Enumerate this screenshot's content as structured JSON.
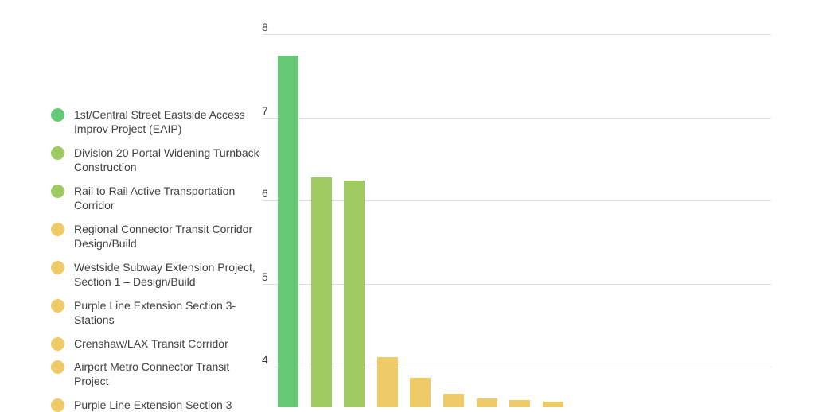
{
  "chart_data": {
    "type": "bar",
    "title": "",
    "xlabel": "",
    "ylabel": "",
    "ylim": [
      3.5,
      8
    ],
    "yticks": [
      4,
      5,
      6,
      7,
      8
    ],
    "grid": true,
    "legend_position": "left",
    "categories": [
      "1st/Central Street Eastside Access Improv Project (EAIP)",
      "Division 20 Portal Widening Turnback Construction",
      "Rail to Rail Active Transportation Corridor",
      "Regional Connector Transit Corridor Design/Build",
      "Westside Subway Extension Project, Section 1 – Design/Build",
      "Purple Line Extension Section 3-Stations",
      "Crenshaw/LAX Transit Corridor",
      "Airport Metro Connector Transit Project",
      "Purple Line Extension Section 3"
    ],
    "values": [
      7.74,
      6.28,
      6.24,
      4.12,
      3.87,
      3.68,
      3.62,
      3.6,
      3.58
    ],
    "colors": [
      "#66c975",
      "#9fca62",
      "#9fca62",
      "#eecb67",
      "#eecb67",
      "#eecb67",
      "#eecb67",
      "#eecb67",
      "#eecb67"
    ]
  },
  "legend": {
    "items": [
      {
        "label": "1st/Central Street Eastside Access Improv Project (EAIP)",
        "color": "#66c975"
      },
      {
        "label": "Division 20 Portal Widening Turnback Construction",
        "color": "#9fca62"
      },
      {
        "label": "Rail to Rail Active Transportation Corridor",
        "color": "#9fca62"
      },
      {
        "label": "Regional Connector Transit Corridor Design/Build",
        "color": "#eecb67"
      },
      {
        "label": "Westside Subway Extension Project, Section 1 – Design/Build",
        "color": "#eecb67"
      },
      {
        "label": "Purple Line Extension Section 3-Stations",
        "color": "#eecb67"
      },
      {
        "label": "Crenshaw/LAX Transit Corridor",
        "color": "#eecb67"
      },
      {
        "label": "Airport Metro Connector Transit Project",
        "color": "#eecb67"
      },
      {
        "label": "Purple Line Extension Section 3",
        "color": "#eecb67"
      }
    ]
  },
  "axis": {
    "ticks": [
      "8",
      "7",
      "6",
      "5",
      "4"
    ]
  }
}
